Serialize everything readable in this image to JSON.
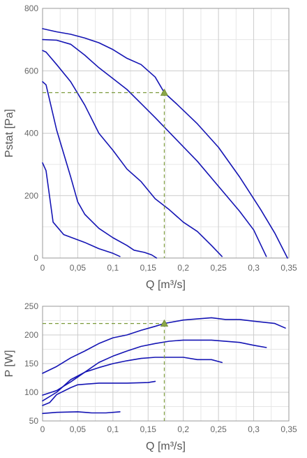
{
  "colors": {
    "curve": "#1414b4",
    "grid": "#cccccc",
    "frame": "#999999",
    "guide": "#7a9a3a",
    "marker": "#8aa648",
    "tick_text": "#666666",
    "axis_text": "#555555"
  },
  "chart_data": [
    {
      "type": "line",
      "id": "pressure",
      "xlabel": "Q [m³/s]",
      "ylabel": "Pstat [Pa]",
      "xlim": [
        0,
        0.35
      ],
      "ylim": [
        0,
        800
      ],
      "x_ticks": [
        0,
        0.05,
        0.1,
        0.15,
        0.2,
        0.25,
        0.3,
        0.35
      ],
      "x_tick_labels": [
        "0",
        "0,05",
        "0,1",
        "0,15",
        "0,2",
        "0,25",
        "0,3",
        "0,35"
      ],
      "y_ticks": [
        0,
        200,
        400,
        600,
        800
      ],
      "y_tick_labels": [
        "0",
        "200",
        "400",
        "600",
        "800"
      ],
      "grid": true,
      "series": [
        {
          "points": [
            [
              0,
              735
            ],
            [
              0.02,
              725
            ],
            [
              0.04,
              717
            ],
            [
              0.06,
              705
            ],
            [
              0.08,
              690
            ],
            [
              0.1,
              668
            ],
            [
              0.12,
              640
            ],
            [
              0.14,
              620
            ],
            [
              0.16,
              580
            ],
            [
              0.173,
              530
            ],
            [
              0.19,
              495
            ],
            [
              0.22,
              430
            ],
            [
              0.25,
              355
            ],
            [
              0.28,
              260
            ],
            [
              0.31,
              155
            ],
            [
              0.33,
              80
            ],
            [
              0.348,
              0
            ]
          ]
        },
        {
          "points": [
            [
              0,
              700
            ],
            [
              0.02,
              698
            ],
            [
              0.04,
              685
            ],
            [
              0.06,
              650
            ],
            [
              0.08,
              610
            ],
            [
              0.1,
              575
            ],
            [
              0.12,
              540
            ],
            [
              0.14,
              495
            ],
            [
              0.16,
              450
            ],
            [
              0.19,
              380
            ],
            [
              0.22,
              310
            ],
            [
              0.25,
              230
            ],
            [
              0.28,
              150
            ],
            [
              0.3,
              90
            ],
            [
              0.318,
              5
            ]
          ]
        },
        {
          "points": [
            [
              0,
              665
            ],
            [
              0.005,
              660
            ],
            [
              0.02,
              620
            ],
            [
              0.04,
              565
            ],
            [
              0.06,
              490
            ],
            [
              0.08,
              400
            ],
            [
              0.1,
              345
            ],
            [
              0.12,
              285
            ],
            [
              0.14,
              245
            ],
            [
              0.16,
              190
            ],
            [
              0.18,
              155
            ],
            [
              0.2,
              115
            ],
            [
              0.22,
              85
            ],
            [
              0.24,
              40
            ],
            [
              0.255,
              5
            ]
          ]
        },
        {
          "points": [
            [
              0,
              565
            ],
            [
              0.005,
              555
            ],
            [
              0.02,
              410
            ],
            [
              0.04,
              260
            ],
            [
              0.05,
              180
            ],
            [
              0.06,
              140
            ],
            [
              0.08,
              95
            ],
            [
              0.1,
              65
            ],
            [
              0.12,
              40
            ],
            [
              0.13,
              25
            ],
            [
              0.145,
              18
            ],
            [
              0.155,
              10
            ],
            [
              0.162,
              0
            ]
          ]
        },
        {
          "points": [
            [
              0,
              305
            ],
            [
              0.005,
              280
            ],
            [
              0.015,
              115
            ],
            [
              0.03,
              75
            ],
            [
              0.06,
              50
            ],
            [
              0.08,
              30
            ],
            [
              0.1,
              15
            ],
            [
              0.11,
              5
            ]
          ]
        }
      ],
      "operating_point": {
        "x": 0.173,
        "y": 530
      }
    },
    {
      "type": "line",
      "id": "power",
      "xlabel": "Q [m³/s]",
      "ylabel": "P [W]",
      "xlim": [
        0,
        0.35
      ],
      "ylim": [
        50,
        250
      ],
      "x_ticks": [
        0,
        0.05,
        0.1,
        0.15,
        0.2,
        0.25,
        0.3,
        0.35
      ],
      "x_tick_labels": [
        "0",
        "0,05",
        "0,1",
        "0,15",
        "0,2",
        "0,25",
        "0,3",
        "0,35"
      ],
      "y_ticks": [
        50,
        100,
        150,
        200,
        250
      ],
      "y_tick_labels": [
        "50",
        "100",
        "150",
        "200",
        "250"
      ],
      "grid": true,
      "series": [
        {
          "points": [
            [
              0,
              133
            ],
            [
              0.02,
              145
            ],
            [
              0.04,
              160
            ],
            [
              0.06,
              172
            ],
            [
              0.08,
              185
            ],
            [
              0.1,
              195
            ],
            [
              0.12,
              200
            ],
            [
              0.14,
              208
            ],
            [
              0.16,
              215
            ],
            [
              0.173,
              220
            ],
            [
              0.2,
              226
            ],
            [
              0.24,
              230
            ],
            [
              0.26,
              227
            ],
            [
              0.28,
              227
            ],
            [
              0.3,
              224
            ],
            [
              0.33,
              220
            ],
            [
              0.345,
              212
            ]
          ]
        },
        {
          "points": [
            [
              0,
              95
            ],
            [
              0.02,
              103
            ],
            [
              0.04,
              118
            ],
            [
              0.06,
              135
            ],
            [
              0.08,
              152
            ],
            [
              0.1,
              163
            ],
            [
              0.12,
              172
            ],
            [
              0.14,
              180
            ],
            [
              0.16,
              185
            ],
            [
              0.18,
              189
            ],
            [
              0.2,
              191
            ],
            [
              0.24,
              191
            ],
            [
              0.28,
              187
            ],
            [
              0.3,
              182
            ],
            [
              0.318,
              178
            ]
          ]
        },
        {
          "points": [
            [
              0,
              85
            ],
            [
              0.02,
              100
            ],
            [
              0.04,
              122
            ],
            [
              0.06,
              135
            ],
            [
              0.08,
              143
            ],
            [
              0.1,
              150
            ],
            [
              0.12,
              155
            ],
            [
              0.14,
              159
            ],
            [
              0.16,
              161
            ],
            [
              0.2,
              161
            ],
            [
              0.22,
              157
            ],
            [
              0.24,
              157
            ],
            [
              0.255,
              152
            ]
          ]
        },
        {
          "points": [
            [
              0,
              77
            ],
            [
              0.01,
              82
            ],
            [
              0.02,
              96
            ],
            [
              0.04,
              108
            ],
            [
              0.05,
              113
            ],
            [
              0.08,
              116
            ],
            [
              0.12,
              116
            ],
            [
              0.15,
              117
            ],
            [
              0.16,
              119
            ]
          ]
        },
        {
          "points": [
            [
              0,
              63
            ],
            [
              0.02,
              65
            ],
            [
              0.05,
              66
            ],
            [
              0.07,
              64
            ],
            [
              0.09,
              64
            ],
            [
              0.11,
              66
            ]
          ]
        }
      ],
      "operating_point": {
        "x": 0.173,
        "y": 220
      }
    }
  ]
}
